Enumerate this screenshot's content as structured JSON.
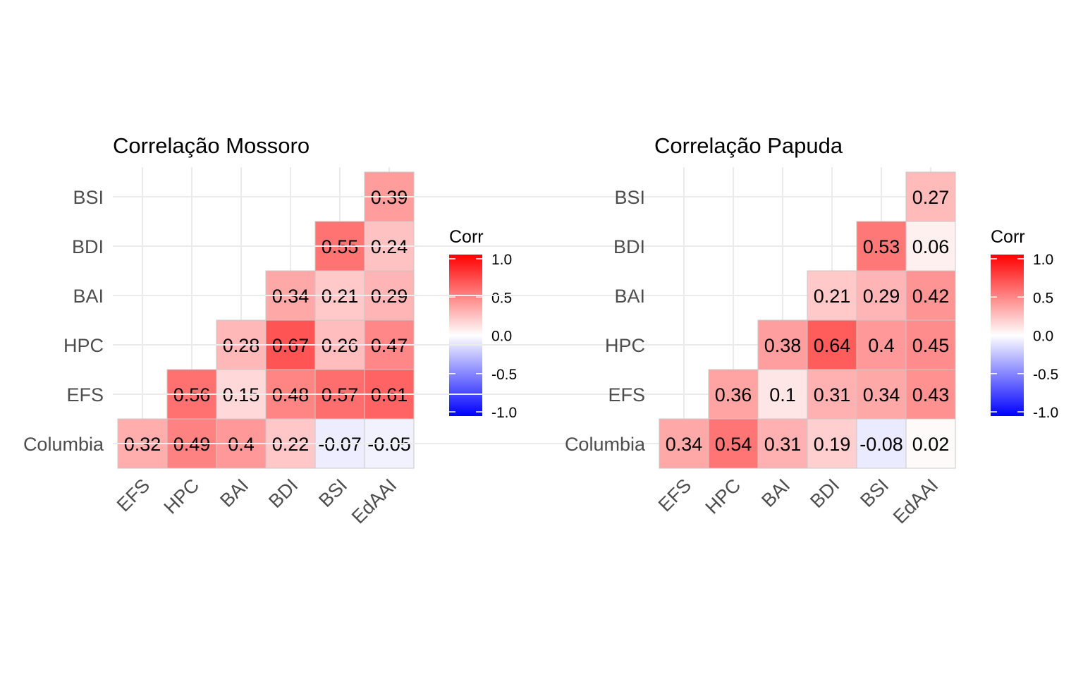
{
  "chart_data": [
    {
      "type": "heatmap",
      "title": "Correlação Mossoro",
      "x_categories": [
        "EFS",
        "HPC",
        "BAI",
        "BDI",
        "BSI",
        "EdAAI"
      ],
      "y_categories": [
        "Columbia",
        "EFS",
        "HPC",
        "BAI",
        "BDI",
        "BSI"
      ],
      "cells": [
        {
          "x": "EFS",
          "y": "Columbia",
          "value": 0.32,
          "label": "0.32"
        },
        {
          "x": "HPC",
          "y": "Columbia",
          "value": 0.49,
          "label": "0.49"
        },
        {
          "x": "BAI",
          "y": "Columbia",
          "value": 0.4,
          "label": "0.4"
        },
        {
          "x": "BDI",
          "y": "Columbia",
          "value": 0.22,
          "label": "0.22"
        },
        {
          "x": "BSI",
          "y": "Columbia",
          "value": -0.07,
          "label": "-0.07"
        },
        {
          "x": "EdAAI",
          "y": "Columbia",
          "value": -0.05,
          "label": "-0.05"
        },
        {
          "x": "HPC",
          "y": "EFS",
          "value": 0.56,
          "label": "0.56"
        },
        {
          "x": "BAI",
          "y": "EFS",
          "value": 0.15,
          "label": "0.15"
        },
        {
          "x": "BDI",
          "y": "EFS",
          "value": 0.48,
          "label": "0.48"
        },
        {
          "x": "BSI",
          "y": "EFS",
          "value": 0.57,
          "label": "0.57"
        },
        {
          "x": "EdAAI",
          "y": "EFS",
          "value": 0.61,
          "label": "0.61"
        },
        {
          "x": "BAI",
          "y": "HPC",
          "value": 0.28,
          "label": "0.28"
        },
        {
          "x": "BDI",
          "y": "HPC",
          "value": 0.67,
          "label": "0.67"
        },
        {
          "x": "BSI",
          "y": "HPC",
          "value": 0.26,
          "label": "0.26"
        },
        {
          "x": "EdAAI",
          "y": "HPC",
          "value": 0.47,
          "label": "0.47"
        },
        {
          "x": "BDI",
          "y": "BAI",
          "value": 0.34,
          "label": "0.34"
        },
        {
          "x": "BSI",
          "y": "BAI",
          "value": 0.21,
          "label": "0.21"
        },
        {
          "x": "EdAAI",
          "y": "BAI",
          "value": 0.29,
          "label": "0.29"
        },
        {
          "x": "BSI",
          "y": "BDI",
          "value": 0.55,
          "label": "0.55"
        },
        {
          "x": "EdAAI",
          "y": "BDI",
          "value": 0.24,
          "label": "0.24"
        },
        {
          "x": "EdAAI",
          "y": "BSI",
          "value": 0.39,
          "label": "0.39"
        }
      ],
      "legend": {
        "title": "Corr",
        "ticks": [
          "1.0",
          "0.5",
          "0.0",
          "-0.5",
          "-1.0"
        ],
        "range": [
          -1,
          1
        ],
        "colors": {
          "low": "#0000ff",
          "mid": "#ffffff",
          "high": "#ff0000"
        }
      }
    },
    {
      "type": "heatmap",
      "title": "Correlação Papuda",
      "x_categories": [
        "EFS",
        "HPC",
        "BAI",
        "BDI",
        "BSI",
        "EdAAI"
      ],
      "y_categories": [
        "Columbia",
        "EFS",
        "HPC",
        "BAI",
        "BDI",
        "BSI"
      ],
      "cells": [
        {
          "x": "EFS",
          "y": "Columbia",
          "value": 0.34,
          "label": "0.34"
        },
        {
          "x": "HPC",
          "y": "Columbia",
          "value": 0.54,
          "label": "0.54"
        },
        {
          "x": "BAI",
          "y": "Columbia",
          "value": 0.31,
          "label": "0.31"
        },
        {
          "x": "BDI",
          "y": "Columbia",
          "value": 0.19,
          "label": "0.19"
        },
        {
          "x": "BSI",
          "y": "Columbia",
          "value": -0.08,
          "label": "-0.08"
        },
        {
          "x": "EdAAI",
          "y": "Columbia",
          "value": 0.02,
          "label": "0.02"
        },
        {
          "x": "HPC",
          "y": "EFS",
          "value": 0.36,
          "label": "0.36"
        },
        {
          "x": "BAI",
          "y": "EFS",
          "value": 0.1,
          "label": "0.1"
        },
        {
          "x": "BDI",
          "y": "EFS",
          "value": 0.31,
          "label": "0.31"
        },
        {
          "x": "BSI",
          "y": "EFS",
          "value": 0.34,
          "label": "0.34"
        },
        {
          "x": "EdAAI",
          "y": "EFS",
          "value": 0.43,
          "label": "0.43"
        },
        {
          "x": "BAI",
          "y": "HPC",
          "value": 0.38,
          "label": "0.38"
        },
        {
          "x": "BDI",
          "y": "HPC",
          "value": 0.64,
          "label": "0.64"
        },
        {
          "x": "BSI",
          "y": "HPC",
          "value": 0.4,
          "label": "0.4"
        },
        {
          "x": "EdAAI",
          "y": "HPC",
          "value": 0.45,
          "label": "0.45"
        },
        {
          "x": "BDI",
          "y": "BAI",
          "value": 0.21,
          "label": "0.21"
        },
        {
          "x": "BSI",
          "y": "BAI",
          "value": 0.29,
          "label": "0.29"
        },
        {
          "x": "EdAAI",
          "y": "BAI",
          "value": 0.42,
          "label": "0.42"
        },
        {
          "x": "BSI",
          "y": "BDI",
          "value": 0.53,
          "label": "0.53"
        },
        {
          "x": "EdAAI",
          "y": "BDI",
          "value": 0.06,
          "label": "0.06"
        },
        {
          "x": "EdAAI",
          "y": "BSI",
          "value": 0.27,
          "label": "0.27"
        }
      ],
      "legend": {
        "title": "Corr",
        "ticks": [
          "1.0",
          "0.5",
          "0.0",
          "-0.5",
          "-1.0"
        ],
        "range": [
          -1,
          1
        ],
        "colors": {
          "low": "#0000ff",
          "mid": "#ffffff",
          "high": "#ff0000"
        }
      }
    }
  ]
}
